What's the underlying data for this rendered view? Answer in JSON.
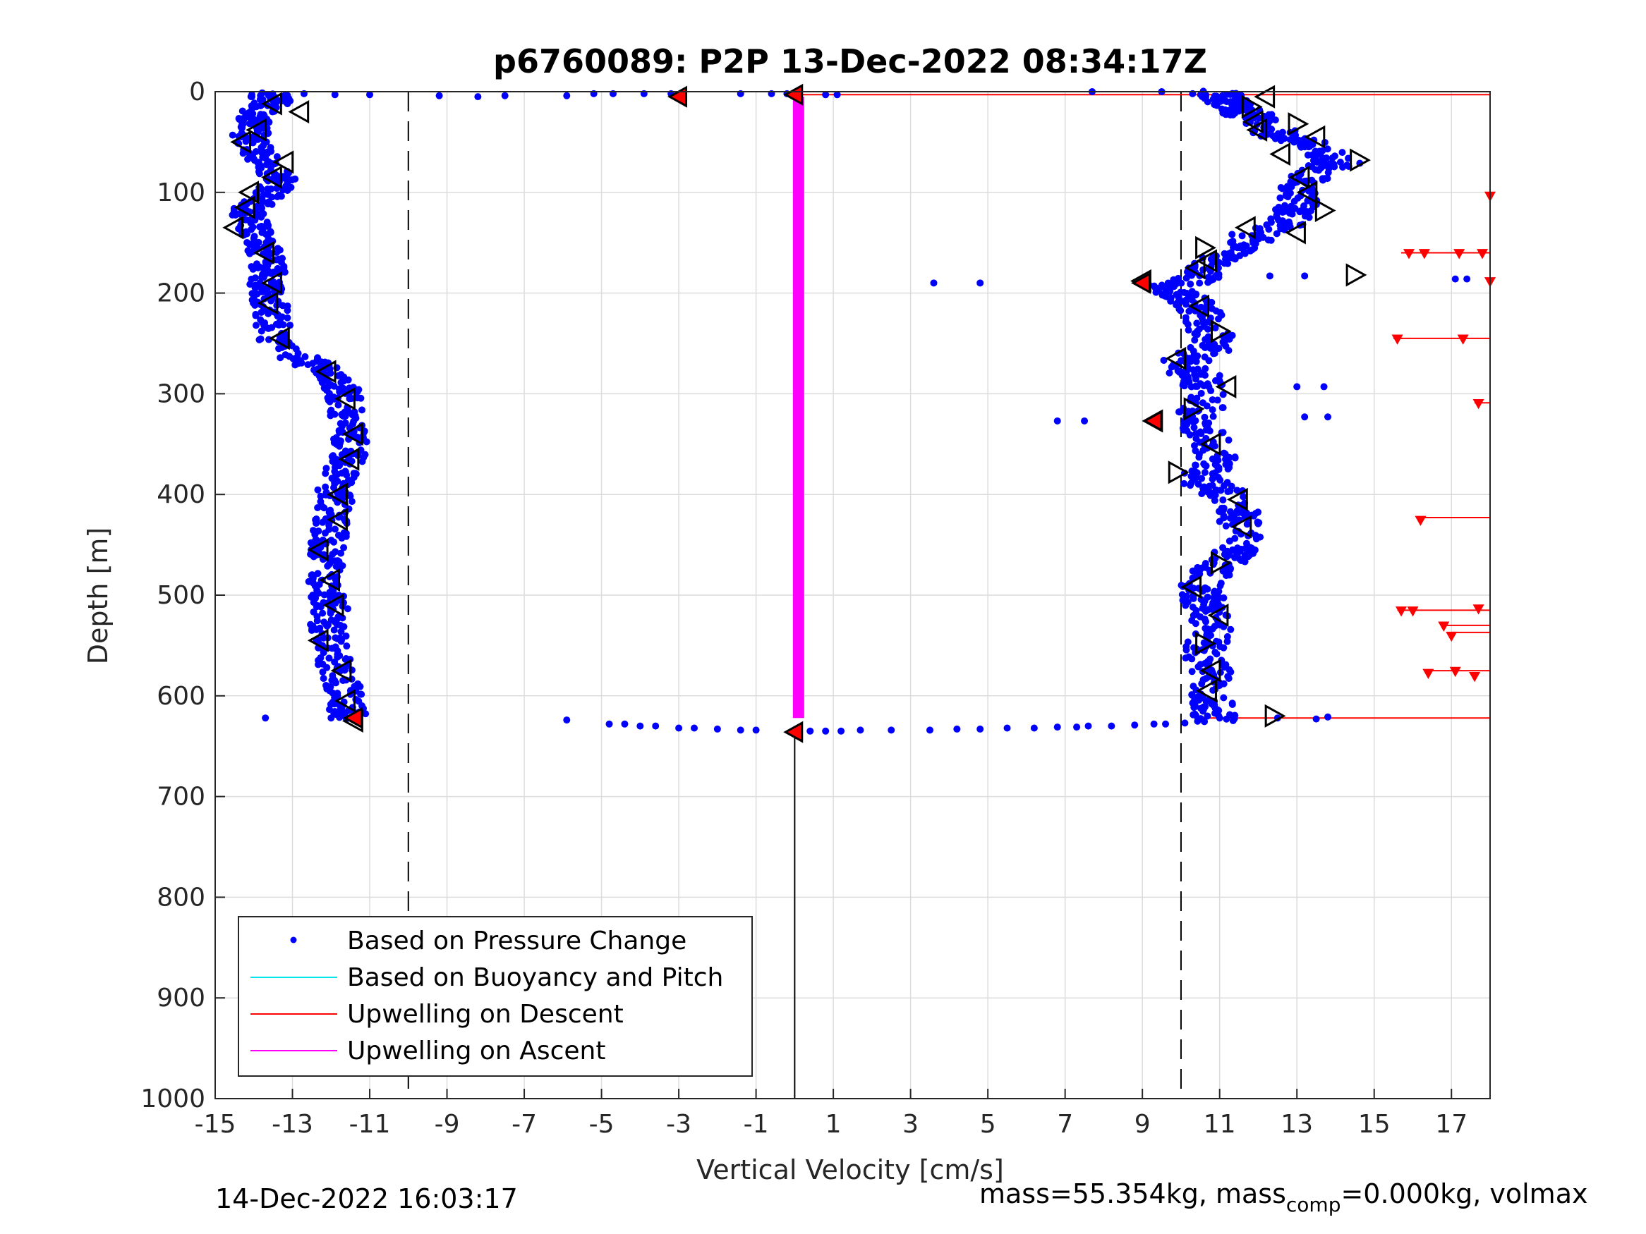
{
  "chart_data": {
    "type": "scatter",
    "title": "p6760089: P2P 13-Dec-2022 08:34:17Z",
    "xlabel": "Vertical Velocity [cm/s]",
    "ylabel": "Depth [m]",
    "xlim": [
      -15,
      18
    ],
    "ylim": [
      0,
      1000
    ],
    "y_reversed": true,
    "grid": true,
    "x_ticks": [
      -15,
      -13,
      -11,
      -9,
      -7,
      -5,
      -3,
      -1,
      1,
      3,
      5,
      7,
      9,
      11,
      13,
      15,
      17
    ],
    "x_tick_labels": [
      "-15",
      "-13",
      "-11",
      "-9",
      "-7",
      "-5",
      "-3",
      "-1",
      "1",
      "3",
      "5",
      "7",
      "9",
      "11",
      "13",
      "15",
      "17"
    ],
    "y_ticks": [
      0,
      100,
      200,
      300,
      400,
      500,
      600,
      700,
      800,
      900,
      1000
    ],
    "y_tick_labels": [
      "0",
      "100",
      "200",
      "300",
      "400",
      "500",
      "600",
      "700",
      "800",
      "900",
      "1000"
    ],
    "reference_lines_x": [
      -10,
      10,
      0
    ],
    "legend": {
      "placement": "bottom-left",
      "entries": [
        {
          "label": "Based on Pressure Change",
          "color": "#0000ff",
          "marker": "dot"
        },
        {
          "label": "Based on Buoyancy and Pitch",
          "color": "#00e5ee",
          "marker": "line"
        },
        {
          "label": "Upwelling on Descent",
          "color": "#ff0000",
          "marker": "line"
        },
        {
          "label": "Upwelling on Ascent",
          "color": "#ff00ff",
          "marker": "line"
        }
      ]
    },
    "colors": {
      "pressure": "#0000ff",
      "descent": "#ff0000",
      "ascent": "#ff00ff",
      "marker_fill": "#ff0000"
    },
    "descent_profile": [
      [
        -13.8,
        2
      ],
      [
        -13.4,
        8
      ],
      [
        -13.9,
        20
      ],
      [
        -14.0,
        30
      ],
      [
        -14.1,
        45
      ],
      [
        -13.9,
        60
      ],
      [
        -13.5,
        75
      ],
      [
        -13.3,
        90
      ],
      [
        -13.7,
        105
      ],
      [
        -14.2,
        120
      ],
      [
        -14.0,
        135
      ],
      [
        -13.8,
        150
      ],
      [
        -13.7,
        165
      ],
      [
        -13.6,
        180
      ],
      [
        -13.7,
        195
      ],
      [
        -13.6,
        210
      ],
      [
        -13.5,
        230
      ],
      [
        -13.4,
        250
      ],
      [
        -12.6,
        270
      ],
      [
        -12.0,
        280
      ],
      [
        -11.7,
        295
      ],
      [
        -11.6,
        315
      ],
      [
        -11.5,
        335
      ],
      [
        -11.5,
        355
      ],
      [
        -11.6,
        370
      ],
      [
        -11.9,
        390
      ],
      [
        -11.9,
        410
      ],
      [
        -12.0,
        430
      ],
      [
        -12.1,
        450
      ],
      [
        -12.1,
        470
      ],
      [
        -12.2,
        490
      ],
      [
        -12.0,
        510
      ],
      [
        -12.1,
        530
      ],
      [
        -12.0,
        550
      ],
      [
        -11.9,
        570
      ],
      [
        -11.7,
        590
      ],
      [
        -11.6,
        610
      ],
      [
        -11.5,
        622
      ]
    ],
    "ascent_profile": [
      [
        10.9,
        625
      ],
      [
        10.8,
        610
      ],
      [
        10.8,
        590
      ],
      [
        10.7,
        570
      ],
      [
        10.6,
        550
      ],
      [
        10.9,
        530
      ],
      [
        10.6,
        510
      ],
      [
        10.5,
        495
      ],
      [
        10.8,
        475
      ],
      [
        11.3,
        460
      ],
      [
        11.6,
        440
      ],
      [
        11.5,
        420
      ],
      [
        11.2,
        400
      ],
      [
        10.5,
        385
      ],
      [
        10.9,
        365
      ],
      [
        10.7,
        345
      ],
      [
        10.4,
        325
      ],
      [
        10.7,
        305
      ],
      [
        10.5,
        285
      ],
      [
        10.0,
        270
      ],
      [
        10.9,
        255
      ],
      [
        10.8,
        240
      ],
      [
        10.5,
        220
      ],
      [
        10.2,
        205
      ],
      [
        9.5,
        195
      ],
      [
        10.6,
        185
      ],
      [
        10.7,
        170
      ],
      [
        11.5,
        160
      ],
      [
        11.8,
        145
      ],
      [
        12.7,
        130
      ],
      [
        13.0,
        115
      ],
      [
        13.0,
        100
      ],
      [
        13.2,
        85
      ],
      [
        14.1,
        70
      ],
      [
        13.3,
        55
      ],
      [
        12.6,
        45
      ],
      [
        12.0,
        30
      ],
      [
        11.6,
        18
      ],
      [
        11.1,
        8
      ],
      [
        11.0,
        2
      ]
    ],
    "surface_points": [
      [
        -12.7,
        2
      ],
      [
        -11.9,
        3
      ],
      [
        -11.0,
        3
      ],
      [
        -9.2,
        4
      ],
      [
        -8.2,
        5
      ],
      [
        -7.5,
        4
      ],
      [
        -5.9,
        4
      ],
      [
        -5.2,
        2
      ],
      [
        -4.7,
        2
      ],
      [
        -3.9,
        2
      ],
      [
        -3.2,
        2
      ],
      [
        -1.4,
        2
      ],
      [
        -0.6,
        2
      ],
      [
        -0.2,
        2
      ],
      [
        0.8,
        3
      ],
      [
        1.1,
        3
      ],
      [
        7.7,
        0
      ],
      [
        9.5,
        0
      ],
      [
        10.3,
        2
      ]
    ],
    "bottom_points": [
      [
        -13.7,
        622
      ],
      [
        -12.0,
        622
      ],
      [
        -5.9,
        624
      ],
      [
        -4.8,
        628
      ],
      [
        -4.4,
        628
      ],
      [
        -4.0,
        630
      ],
      [
        -3.6,
        630
      ],
      [
        -3.0,
        632
      ],
      [
        -2.6,
        632
      ],
      [
        -2.0,
        633
      ],
      [
        -1.4,
        634
      ],
      [
        -1.0,
        634
      ],
      [
        0.4,
        635
      ],
      [
        0.8,
        635
      ],
      [
        1.2,
        635
      ],
      [
        1.7,
        634
      ],
      [
        2.5,
        634
      ],
      [
        3.5,
        634
      ],
      [
        4.2,
        633
      ],
      [
        4.8,
        633
      ],
      [
        5.5,
        632
      ],
      [
        6.2,
        632
      ],
      [
        6.8,
        631
      ],
      [
        7.3,
        631
      ],
      [
        7.6,
        630
      ],
      [
        8.2,
        630
      ],
      [
        8.8,
        629
      ],
      [
        9.3,
        628
      ],
      [
        9.6,
        628
      ],
      [
        10.1,
        627
      ],
      [
        11.0,
        622
      ],
      [
        12.5,
        622
      ],
      [
        13.5,
        623
      ],
      [
        13.8,
        621
      ]
    ],
    "isolated_points": [
      [
        3.6,
        190
      ],
      [
        4.8,
        190
      ],
      [
        6.8,
        327
      ],
      [
        7.5,
        327
      ],
      [
        12.3,
        183
      ],
      [
        13.2,
        183
      ],
      [
        13.0,
        293
      ],
      [
        13.7,
        293
      ],
      [
        13.8,
        323
      ],
      [
        13.2,
        323
      ],
      [
        17.1,
        186
      ],
      [
        17.4,
        186
      ]
    ],
    "descent_triangles": [
      [
        -13.5,
        12
      ],
      [
        -12.8,
        20
      ],
      [
        -13.9,
        38
      ],
      [
        -14.3,
        50
      ],
      [
        -13.2,
        70
      ],
      [
        -13.5,
        85
      ],
      [
        -14.1,
        100
      ],
      [
        -14.2,
        115
      ],
      [
        -14.5,
        135
      ],
      [
        -13.7,
        160
      ],
      [
        -13.5,
        190
      ],
      [
        -13.6,
        210
      ],
      [
        -13.3,
        245
      ],
      [
        -12.1,
        278
      ],
      [
        -11.6,
        305
      ],
      [
        -11.4,
        340
      ],
      [
        -11.5,
        365
      ],
      [
        -11.8,
        400
      ],
      [
        -11.8,
        425
      ],
      [
        -12.3,
        455
      ],
      [
        -12.0,
        485
      ],
      [
        -11.9,
        510
      ],
      [
        -12.3,
        545
      ],
      [
        -11.7,
        575
      ],
      [
        -11.6,
        605
      ],
      [
        -11.4,
        625
      ]
    ],
    "ascent_triangles": [
      [
        12.2,
        5
      ],
      [
        11.8,
        15
      ],
      [
        11.9,
        30
      ],
      [
        12.0,
        38
      ],
      [
        13.0,
        32
      ],
      [
        13.5,
        45
      ],
      [
        12.6,
        62
      ],
      [
        14.6,
        68
      ],
      [
        13.1,
        85
      ],
      [
        13.3,
        100
      ],
      [
        13.7,
        118
      ],
      [
        11.7,
        135
      ],
      [
        13.0,
        140
      ],
      [
        10.6,
        155
      ],
      [
        10.7,
        168
      ],
      [
        10.4,
        175
      ],
      [
        14.5,
        182
      ],
      [
        9.0,
        188
      ],
      [
        10.5,
        213
      ],
      [
        11.0,
        238
      ],
      [
        9.9,
        265
      ],
      [
        11.2,
        293
      ],
      [
        10.3,
        315
      ],
      [
        9.3,
        327
      ],
      [
        10.8,
        350
      ],
      [
        9.9,
        378
      ],
      [
        11.5,
        405
      ],
      [
        11.6,
        432
      ],
      [
        11.0,
        468
      ],
      [
        10.3,
        492
      ],
      [
        11.0,
        520
      ],
      [
        10.6,
        548
      ],
      [
        10.8,
        575
      ],
      [
        10.7,
        595
      ],
      [
        12.4,
        620
      ]
    ],
    "red_filled_markers": [
      [
        -3.0,
        5
      ],
      [
        0.0,
        3
      ],
      [
        9.0,
        190
      ],
      [
        9.3,
        327
      ],
      [
        -11.4,
        622
      ],
      [
        0.0,
        636
      ]
    ],
    "ascent_upwelling": {
      "x": 0.1,
      "y_from": 5,
      "y_to": 622
    },
    "descent_upwelling_lines": [
      {
        "y": 3,
        "x_start": 0.1
      },
      {
        "y": 622,
        "x_start": 10.5
      },
      {
        "y": 160,
        "x_start": 15.7
      },
      {
        "y": 245,
        "x_start": 15.5
      },
      {
        "y": 423,
        "x_start": 16.2
      },
      {
        "y": 515,
        "x_start": 15.6
      },
      {
        "y": 530,
        "x_start": 16.8
      },
      {
        "y": 537,
        "x_start": 17.0
      },
      {
        "y": 575,
        "x_start": 16.3
      },
      {
        "y": 309,
        "x_start": 17.6
      }
    ],
    "descent_upwelling_arrows": [
      [
        18.0,
        103
      ],
      [
        15.9,
        160
      ],
      [
        16.3,
        160
      ],
      [
        17.2,
        160
      ],
      [
        17.8,
        160
      ],
      [
        18.0,
        188
      ],
      [
        15.6,
        245
      ],
      [
        17.3,
        245
      ],
      [
        17.7,
        309
      ],
      [
        16.2,
        425
      ],
      [
        15.7,
        515
      ],
      [
        16.0,
        515
      ],
      [
        17.7,
        513
      ],
      [
        16.8,
        530
      ],
      [
        17.0,
        540
      ],
      [
        16.4,
        577
      ],
      [
        17.1,
        575
      ],
      [
        17.6,
        580
      ]
    ],
    "bottom_line": {
      "x": 0.0,
      "y_from": 636,
      "y_to": 1000
    }
  },
  "footer": {
    "timestamp": "14-Dec-2022 16:03:17",
    "mass_text_1": "mass=55.354kg, mass",
    "mass_sub": "comp",
    "mass_text_2": "=0.000kg, volmax"
  }
}
